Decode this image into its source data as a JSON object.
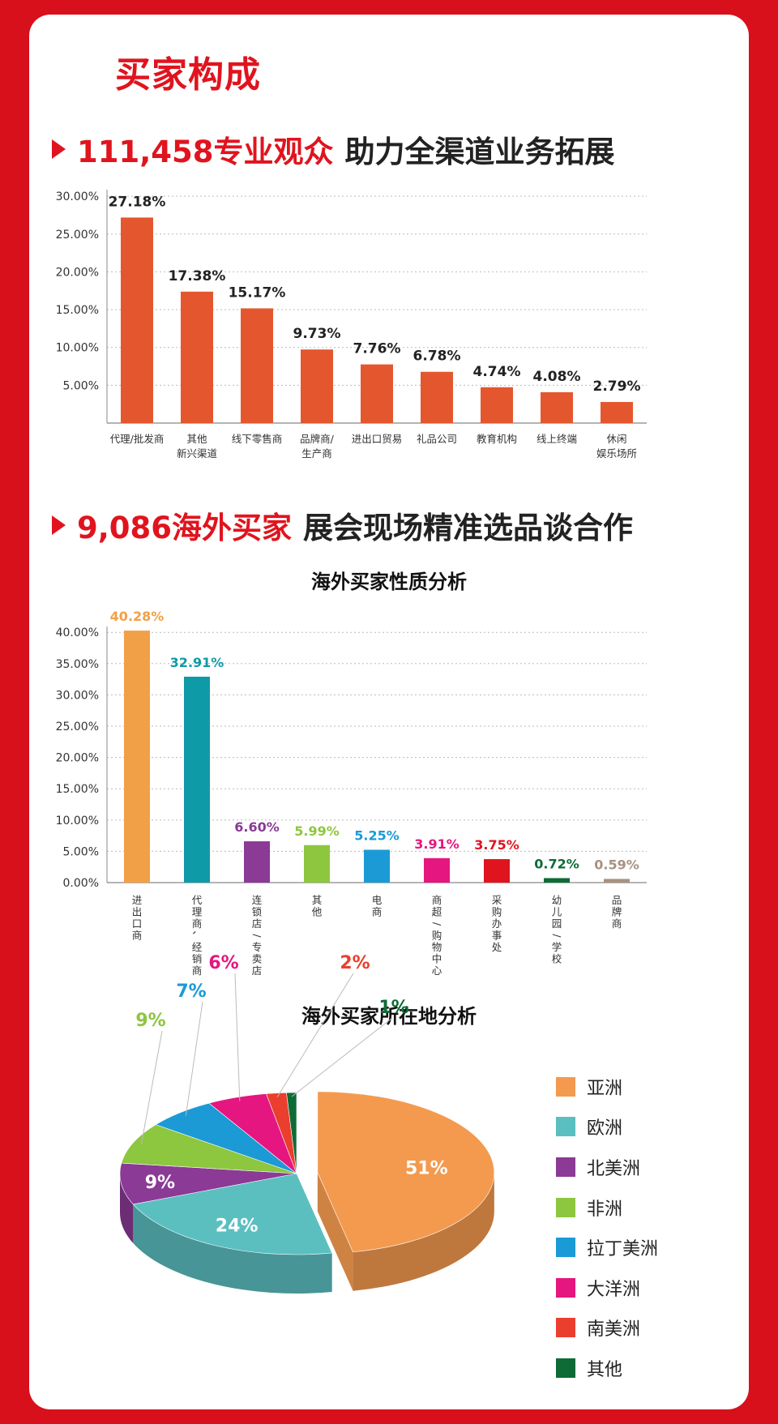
{
  "title": "买家构成",
  "headline1": {
    "highlight": "111,458专业观众",
    "rest": "助力全渠道业务拓展"
  },
  "headline2": {
    "highlight": "9,086海外买家",
    "rest": "展会现场精准选品谈合作"
  },
  "chart_data": [
    {
      "type": "bar",
      "title": "",
      "categories": [
        "代理/批发商",
        "其他\n新兴渠道",
        "线下零售商",
        "品牌商/\n生产商",
        "进出口贸易",
        "礼品公司",
        "教育机构",
        "线上终端",
        "休闲\n娱乐场所"
      ],
      "values": [
        27.18,
        17.38,
        15.17,
        9.73,
        7.76,
        6.78,
        4.74,
        4.08,
        2.79
      ],
      "data_labels": [
        "27.18%",
        "17.38%",
        "15.17%",
        "9.73%",
        "7.76%",
        "6.78%",
        "4.74%",
        "4.08%",
        "2.79%"
      ],
      "yticks": [
        "5.00%",
        "10.00%",
        "15.00%",
        "20.00%",
        "25.00%",
        "30.00%"
      ],
      "ylim": [
        0,
        31
      ],
      "grid": true,
      "color": "#e4572e"
    },
    {
      "type": "bar",
      "title": "海外买家性质分析",
      "categories": [
        "进出口商",
        "代理商、经销商",
        "连锁店/专卖店",
        "其他",
        "电商",
        "商超/购物中心",
        "采购办事处",
        "幼儿园/学校",
        "品牌商"
      ],
      "values": [
        40.28,
        32.91,
        6.6,
        5.99,
        5.25,
        3.91,
        3.75,
        0.72,
        0.59
      ],
      "data_labels": [
        "40.28%",
        "32.91%",
        "6.60%",
        "5.99%",
        "5.25%",
        "3.91%",
        "3.75%",
        "0.72%",
        "0.59%"
      ],
      "colors": [
        "#f2a047",
        "#0e9aa7",
        "#8b3a96",
        "#8dc63f",
        "#1b9ad6",
        "#e5167f",
        "#e0141e",
        "#0e6b35",
        "#a89180"
      ],
      "yticks": [
        "0.00%",
        "5.00%",
        "10.00%",
        "15.00%",
        "20.00%",
        "25.00%",
        "30.00%",
        "35.00%",
        "40.00%"
      ],
      "ylim": [
        0,
        40
      ],
      "grid": true
    },
    {
      "type": "pie",
      "title": "海外买家所在地分析",
      "categories": [
        "亚洲",
        "欧洲",
        "北美洲",
        "非洲",
        "拉丁美洲",
        "大洋洲",
        "南美洲",
        "其他"
      ],
      "values": [
        51,
        24,
        9,
        9,
        7,
        6,
        2,
        1
      ],
      "data_labels": [
        "51%",
        "24%",
        "9%",
        "9%",
        "7%",
        "6%",
        "2%",
        "1%"
      ],
      "colors": [
        "#f39a4f",
        "#5bbfc0",
        "#8b3a96",
        "#8dc63f",
        "#1b9ad6",
        "#e5167f",
        "#ea3f2e",
        "#0e6b35"
      ],
      "legend": "right"
    }
  ]
}
